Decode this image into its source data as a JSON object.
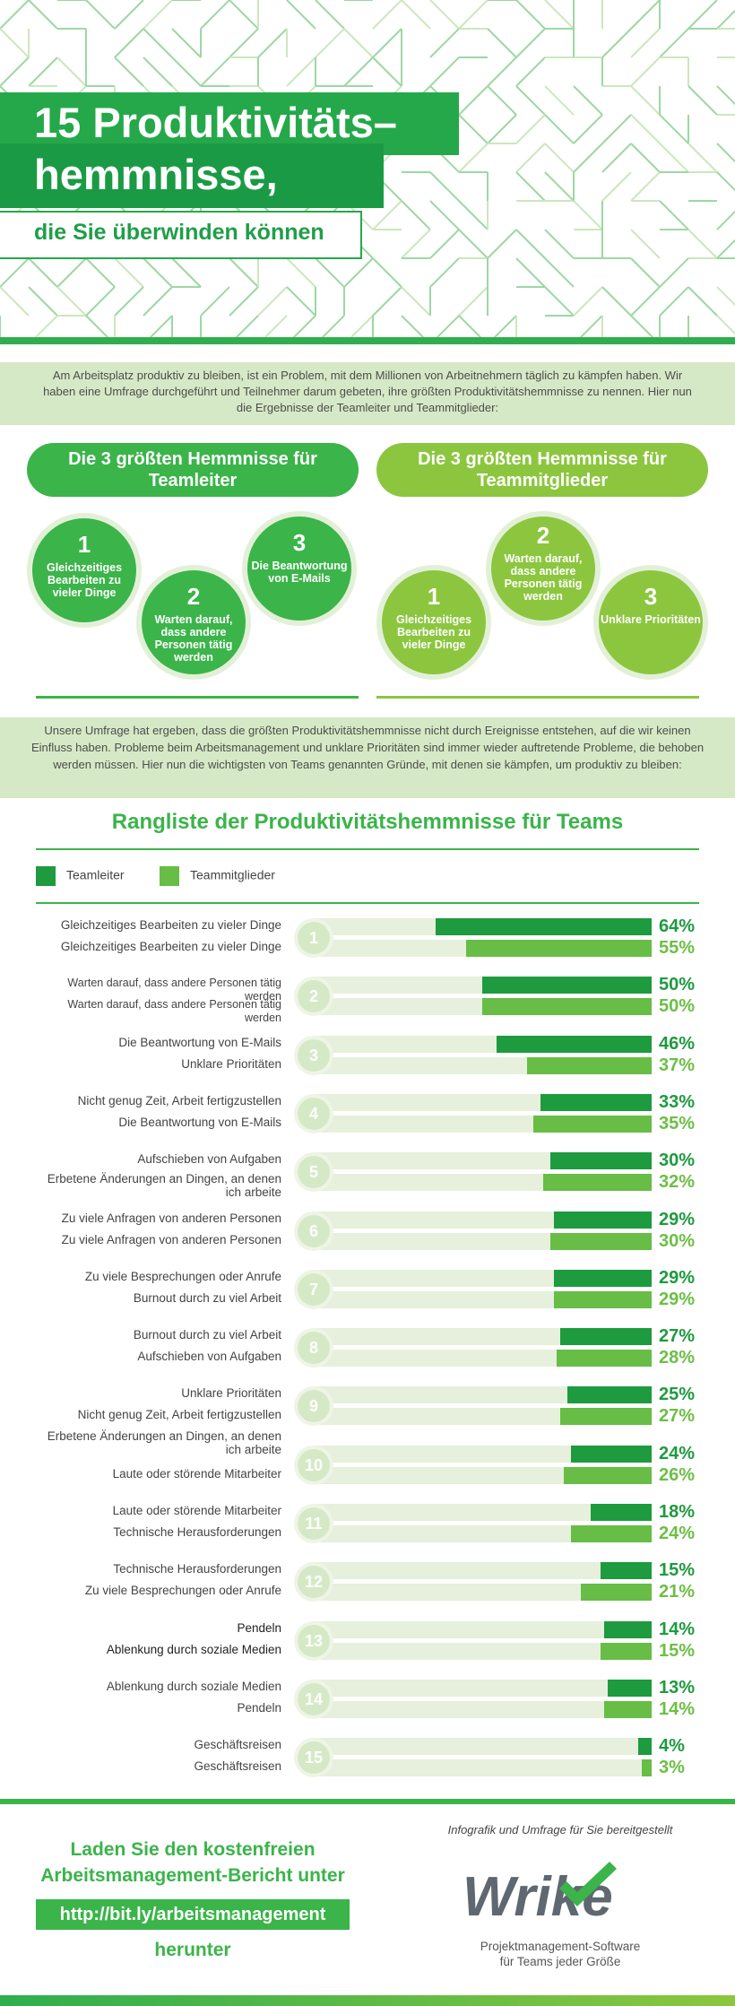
{
  "header": {
    "title_line1": "15 Produktivitäts–",
    "title_line2": "hemmnisse,",
    "subtitle": "die Sie überwinden können"
  },
  "intro": "Am Arbeitsplatz produktiv zu bleiben, ist ein Problem, mit dem Millionen von Arbeitnehmern täglich zu kämpfen haben. Wir haben eine Umfrage durchgeführt und Teilnehmer darum gebeten, ihre größten Produktivitätshemmnisse zu nennen. Hier nun die Ergebnisse der Teamleiter und Teammitglieder:",
  "top3_leaders": {
    "heading": "Die 3 größten Hemmnisse für Teamleiter",
    "items": [
      {
        "num": "1",
        "text": "Gleichzeitiges Bearbeiten zu vieler Dinge"
      },
      {
        "num": "2",
        "text": "Warten darauf, dass andere Personen tätig werden"
      },
      {
        "num": "3",
        "text": "Die Beantwortung von E-Mails"
      }
    ]
  },
  "top3_members": {
    "heading": "Die 3 größten Hemmnisse für Teammitglieder",
    "items": [
      {
        "num": "1",
        "text": "Gleichzeitiges Bearbeiten zu vieler Dinge"
      },
      {
        "num": "2",
        "text": "Warten darauf, dass andere Personen tätig werden"
      },
      {
        "num": "3",
        "text": "Unklare Prioritäten"
      }
    ]
  },
  "survey_text": "Unsere Umfrage hat ergeben, dass die größten Produktivitätshemmnisse nicht durch Ereignisse entstehen, auf die wir keinen Einfluss haben. Probleme beim Arbeitsmanagement und unklare Prioritäten sind immer wieder auftretende Probleme, die behoben werden müssen. Hier nun die wichtigsten von Teams genannten Gründe, mit denen sie kämpfen, um produktiv zu bleiben:",
  "ranking": {
    "title": "Rangliste der Produktivitätshemmnisse für Teams",
    "legend": {
      "leaders": "Teamleiter",
      "members": "Teammitglieder"
    },
    "colors": {
      "leaders": "#1e9a3f",
      "members": "#67bd45"
    },
    "rows": [
      {
        "rank": "1",
        "leader_label": "Gleichzeitiges Bearbeiten zu vieler Dinge",
        "leader_value": 64,
        "leader_pct": "64%",
        "member_label": "Gleichzeitiges Bearbeiten zu vieler Dinge",
        "member_value": 55,
        "member_pct": "55%"
      },
      {
        "rank": "2",
        "leader_label": "Warten darauf, dass andere Personen tätig werden",
        "leader_value": 50,
        "leader_pct": "50%",
        "member_label": "Warten darauf, dass andere Personen tätig werden",
        "member_value": 50,
        "member_pct": "50%"
      },
      {
        "rank": "3",
        "leader_label": "Die Beantwortung von E-Mails",
        "leader_value": 46,
        "leader_pct": "46%",
        "member_label": "Unklare Prioritäten",
        "member_value": 37,
        "member_pct": "37%"
      },
      {
        "rank": "4",
        "leader_label": "Nicht genug Zeit, Arbeit fertigzustellen",
        "leader_value": 33,
        "leader_pct": "33%",
        "member_label": "Die Beantwortung von E-Mails",
        "member_value": 35,
        "member_pct": "35%"
      },
      {
        "rank": "5",
        "leader_label": "Aufschieben von Aufgaben",
        "leader_value": 30,
        "leader_pct": "30%",
        "member_label": "Erbetene Änderungen an Dingen, an denen ich arbeite",
        "member_value": 32,
        "member_pct": "32%"
      },
      {
        "rank": "6",
        "leader_label": "Zu viele Anfragen von anderen Personen",
        "leader_value": 29,
        "leader_pct": "29%",
        "member_label": "Zu viele Anfragen von anderen Personen",
        "member_value": 30,
        "member_pct": "30%"
      },
      {
        "rank": "7",
        "leader_label": "Zu viele Besprechungen oder Anrufe",
        "leader_value": 29,
        "leader_pct": "29%",
        "member_label": "Burnout durch zu viel Arbeit",
        "member_value": 29,
        "member_pct": "29%"
      },
      {
        "rank": "8",
        "leader_label": "Burnout durch zu viel Arbeit",
        "leader_value": 27,
        "leader_pct": "27%",
        "member_label": "Aufschieben von Aufgaben",
        "member_value": 28,
        "member_pct": "28%"
      },
      {
        "rank": "9",
        "leader_label": "Unklare Prioritäten",
        "leader_value": 25,
        "leader_pct": "25%",
        "member_label": "Nicht genug Zeit, Arbeit fertigzustellen",
        "member_value": 27,
        "member_pct": "27%"
      },
      {
        "rank": "10",
        "leader_label": "Erbetene Änderungen an Dingen, an denen ich arbeite",
        "leader_value": 24,
        "leader_pct": "24%",
        "member_label": "Laute oder störende Mitarbeiter",
        "member_value": 26,
        "member_pct": "26%"
      },
      {
        "rank": "11",
        "leader_label": "Laute oder störende Mitarbeiter",
        "leader_value": 18,
        "leader_pct": "18%",
        "member_label": "Technische Herausforderungen",
        "member_value": 24,
        "member_pct": "24%"
      },
      {
        "rank": "12",
        "leader_label": "Technische Herausforderungen",
        "leader_value": 15,
        "leader_pct": "15%",
        "member_label": "Zu viele Besprechungen oder Anrufe",
        "member_value": 21,
        "member_pct": "21%"
      },
      {
        "rank": "13",
        "leader_label": "Pendeln",
        "leader_value": 14,
        "leader_pct": "14%",
        "member_label": "Ablenkung durch soziale Medien",
        "member_value": 15,
        "member_pct": "15%"
      },
      {
        "rank": "14",
        "leader_label": "Ablenkung durch soziale Medien",
        "leader_value": 13,
        "leader_pct": "13%",
        "member_label": "Pendeln",
        "member_value": 14,
        "member_pct": "14%"
      },
      {
        "rank": "15",
        "leader_label": "Geschäftsreisen",
        "leader_value": 4,
        "leader_pct": "4%",
        "member_label": "Geschäftsreisen",
        "member_value": 3,
        "member_pct": "3%"
      }
    ]
  },
  "footer": {
    "cta_line1": "Laden Sie den kostenfreien",
    "cta_line2": "Arbeitsmanagement-Bericht unter",
    "cta_url": "http://bit.ly/arbeitsmanagement",
    "cta_end": "herunter",
    "credit": "Infografik und Umfrage für Sie bereitgestellt",
    "logo_text": "Wrike",
    "tagline_line1": "Projektmanagement-Software",
    "tagline_line2": "für Teams jeder Größe"
  }
}
